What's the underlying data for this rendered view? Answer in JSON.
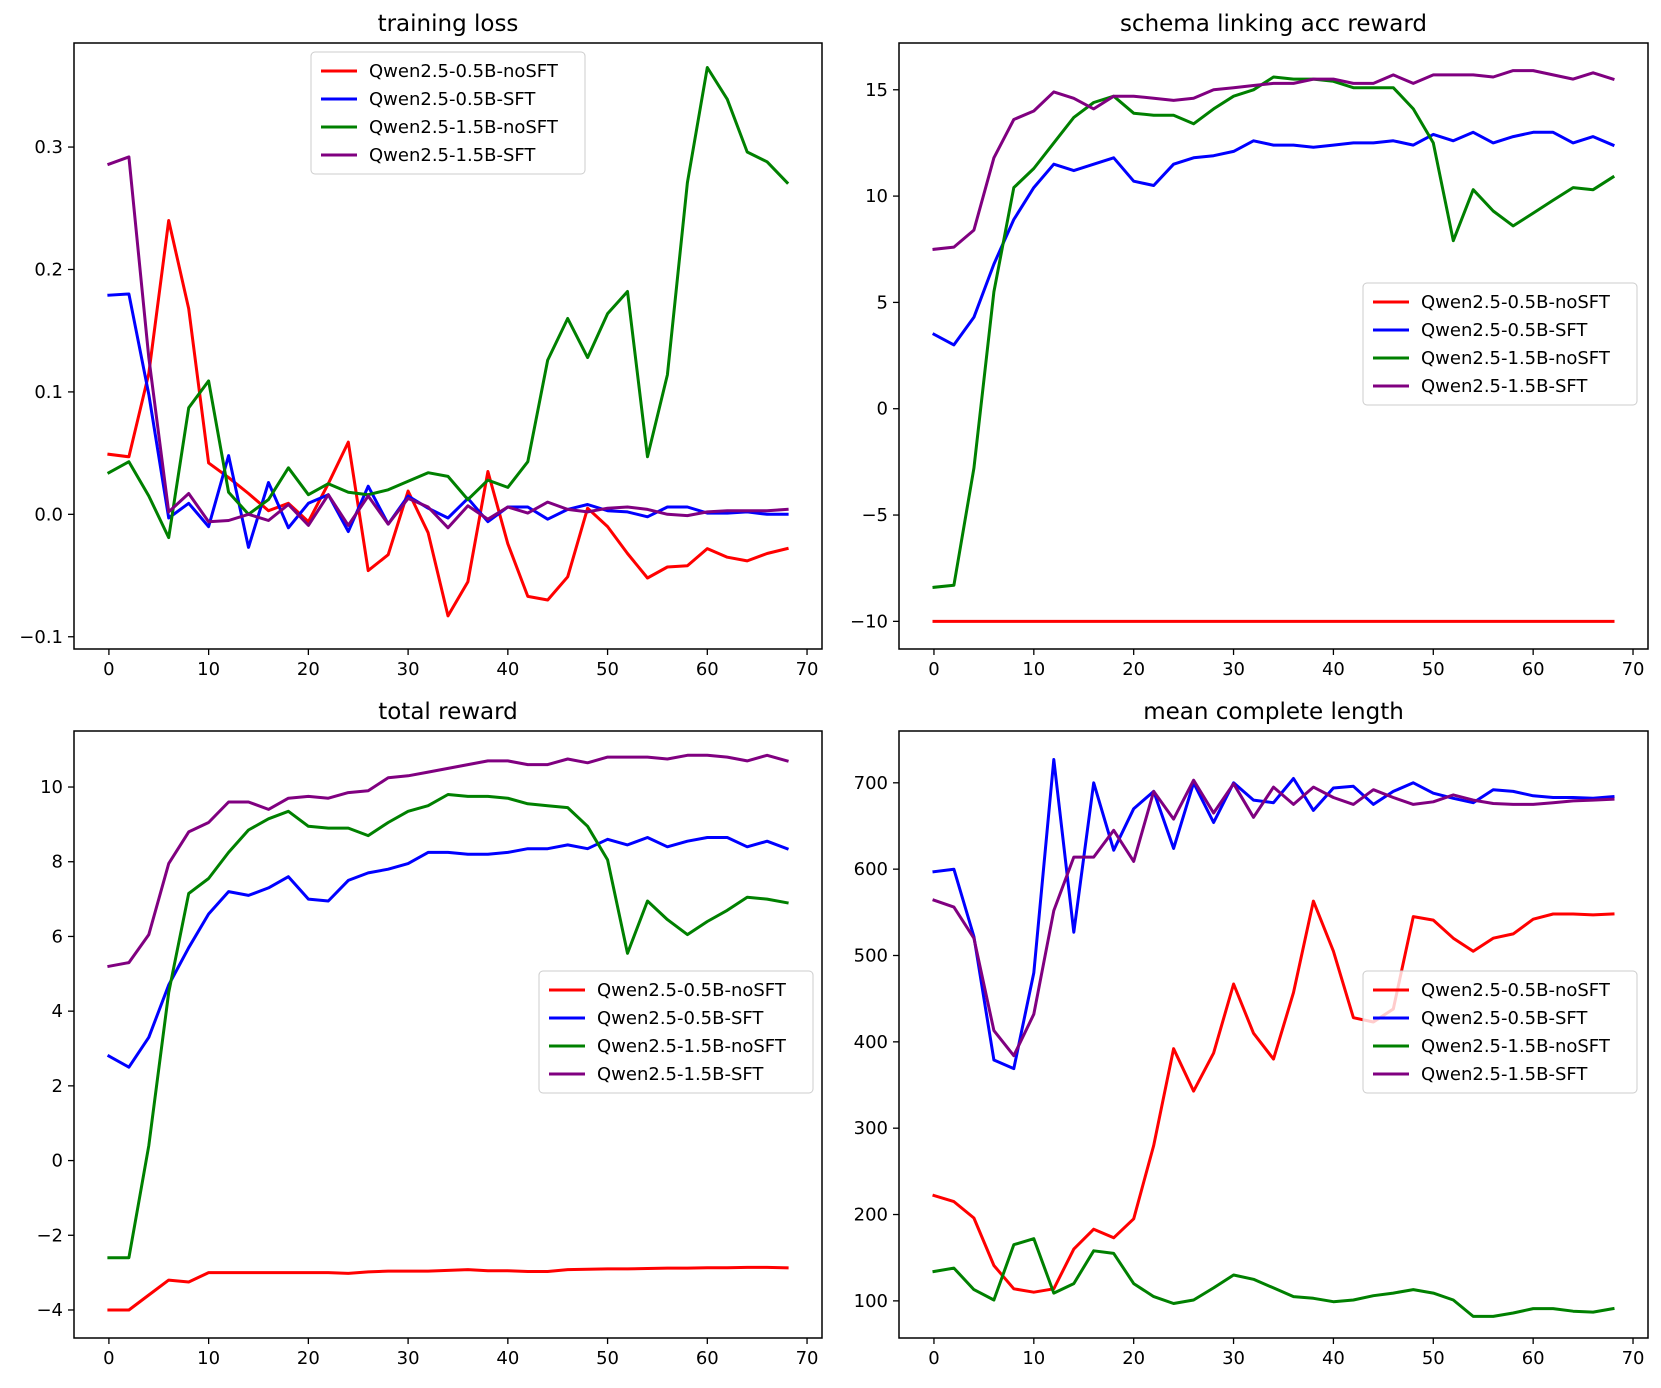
{
  "chart_data": [
    {
      "type": "line",
      "title": "training loss",
      "xlabel": "",
      "ylabel": "",
      "xlim": [
        -3.5,
        71.5
      ],
      "ylim": [
        -0.11,
        0.385
      ],
      "xticks": [
        0,
        10,
        20,
        30,
        40,
        50,
        60,
        70
      ],
      "xtick_labels": [
        "0",
        "10",
        "20",
        "30",
        "40",
        "50",
        "60",
        "70"
      ],
      "yticks": [
        -0.1,
        0.0,
        0.1,
        0.2,
        0.3
      ],
      "ytick_labels": [
        "−0.1",
        "0.0",
        "0.1",
        "0.2",
        "0.3"
      ],
      "grid": false,
      "legend_position": "upper center",
      "x": [
        0,
        2,
        4,
        6,
        8,
        10,
        12,
        14,
        16,
        18,
        20,
        22,
        24,
        26,
        28,
        30,
        32,
        34,
        36,
        38,
        40,
        42,
        44,
        46,
        48,
        50,
        52,
        54,
        56,
        58,
        60,
        62,
        64,
        66,
        68
      ],
      "series": [
        {
          "name": "Qwen2.5-0.5B-noSFT",
          "color": "#ff0000",
          "values": [
            0.049,
            0.047,
            0.115,
            0.24,
            0.168,
            0.042,
            0.03,
            0.017,
            0.003,
            0.009,
            -0.006,
            0.025,
            0.059,
            -0.046,
            -0.033,
            0.019,
            -0.015,
            -0.083,
            -0.055,
            0.035,
            -0.024,
            -0.067,
            -0.07,
            -0.051,
            0.005,
            -0.01,
            -0.032,
            -0.052,
            -0.043,
            -0.042,
            -0.028,
            -0.035,
            -0.038,
            -0.032,
            -0.028
          ]
        },
        {
          "name": "Qwen2.5-0.5B-SFT",
          "color": "#0000ff",
          "values": [
            0.179,
            0.18,
            0.098,
            -0.003,
            0.009,
            -0.01,
            0.048,
            -0.027,
            0.026,
            -0.011,
            0.009,
            0.016,
            -0.014,
            0.023,
            -0.008,
            0.015,
            0.005,
            -0.003,
            0.013,
            -0.006,
            0.006,
            0.006,
            -0.004,
            0.004,
            0.008,
            0.003,
            0.002,
            -0.002,
            0.006,
            0.006,
            0.001,
            0.001,
            0.002,
            0.0,
            0.0
          ]
        },
        {
          "name": "Qwen2.5-1.5B-noSFT",
          "color": "#008000",
          "values": [
            0.034,
            0.043,
            0.015,
            -0.019,
            0.087,
            0.109,
            0.018,
            0.0,
            0.012,
            0.038,
            0.016,
            0.025,
            0.018,
            0.016,
            0.02,
            0.027,
            0.034,
            0.031,
            0.012,
            0.028,
            0.022,
            0.043,
            0.126,
            0.16,
            0.128,
            0.164,
            0.182,
            0.047,
            0.114,
            0.271,
            0.365,
            0.339,
            0.296,
            0.288,
            0.271
          ]
        },
        {
          "name": "Qwen2.5-1.5B-SFT",
          "color": "#800080",
          "values": [
            0.286,
            0.292,
            0.128,
            0.002,
            0.017,
            -0.006,
            -0.005,
            0.0,
            -0.005,
            0.008,
            -0.009,
            0.016,
            -0.009,
            0.015,
            -0.008,
            0.013,
            0.006,
            -0.011,
            0.007,
            -0.004,
            0.006,
            0.001,
            0.01,
            0.004,
            0.002,
            0.005,
            0.006,
            0.004,
            0.0,
            -0.001,
            0.002,
            0.003,
            0.003,
            0.003,
            0.004
          ]
        }
      ]
    },
    {
      "type": "line",
      "title": "schema linking acc reward",
      "xlabel": "",
      "ylabel": "",
      "xlim": [
        -3.5,
        71.5
      ],
      "ylim": [
        -11.3,
        17.2
      ],
      "xticks": [
        0,
        10,
        20,
        30,
        40,
        50,
        60,
        70
      ],
      "xtick_labels": [
        "0",
        "10",
        "20",
        "30",
        "40",
        "50",
        "60",
        "70"
      ],
      "yticks": [
        -10,
        -5,
        0,
        5,
        10,
        15
      ],
      "ytick_labels": [
        "−10",
        "−5",
        "0",
        "5",
        "10",
        "15"
      ],
      "grid": false,
      "legend_position": "center right",
      "x": [
        0,
        2,
        4,
        6,
        8,
        10,
        12,
        14,
        16,
        18,
        20,
        22,
        24,
        26,
        28,
        30,
        32,
        34,
        36,
        38,
        40,
        42,
        44,
        46,
        48,
        50,
        52,
        54,
        56,
        58,
        60,
        62,
        64,
        66,
        68
      ],
      "series": [
        {
          "name": "Qwen2.5-0.5B-noSFT",
          "color": "#ff0000",
          "values": [
            -10,
            -10,
            -10,
            -10,
            -10,
            -10,
            -10,
            -10,
            -10,
            -10,
            -10,
            -10,
            -10,
            -10,
            -10,
            -10,
            -10,
            -10,
            -10,
            -10,
            -10,
            -10,
            -10,
            -10,
            -10,
            -10,
            -10,
            -10,
            -10,
            -10,
            -10,
            -10,
            -10,
            -10,
            -10
          ]
        },
        {
          "name": "Qwen2.5-0.5B-SFT",
          "color": "#0000ff",
          "values": [
            3.5,
            3.0,
            4.3,
            6.8,
            8.9,
            10.4,
            11.5,
            11.2,
            11.5,
            11.8,
            10.7,
            10.5,
            11.5,
            11.8,
            11.9,
            12.1,
            12.6,
            12.4,
            12.4,
            12.3,
            12.4,
            12.5,
            12.5,
            12.6,
            12.4,
            12.9,
            12.6,
            13.0,
            12.5,
            12.8,
            13.0,
            13.0,
            12.5,
            12.8,
            12.4
          ]
        },
        {
          "name": "Qwen2.5-1.5B-noSFT",
          "color": "#008000",
          "values": [
            -8.4,
            -8.3,
            -2.8,
            5.5,
            10.4,
            11.3,
            12.5,
            13.7,
            14.4,
            14.7,
            13.9,
            13.8,
            13.8,
            13.4,
            14.1,
            14.7,
            15.0,
            15.6,
            15.5,
            15.5,
            15.4,
            15.1,
            15.1,
            15.1,
            14.1,
            12.5,
            7.9,
            10.3,
            9.3,
            8.6,
            9.2,
            9.8,
            10.4,
            10.3,
            10.9
          ]
        },
        {
          "name": "Qwen2.5-1.5B-SFT",
          "color": "#800080",
          "values": [
            7.5,
            7.6,
            8.4,
            11.8,
            13.6,
            14.0,
            14.9,
            14.6,
            14.1,
            14.7,
            14.7,
            14.6,
            14.5,
            14.6,
            15.0,
            15.1,
            15.2,
            15.3,
            15.3,
            15.5,
            15.5,
            15.3,
            15.3,
            15.7,
            15.3,
            15.7,
            15.7,
            15.7,
            15.6,
            15.9,
            15.9,
            15.7,
            15.5,
            15.8,
            15.5
          ]
        }
      ]
    },
    {
      "type": "line",
      "title": "total reward",
      "xlabel": "",
      "ylabel": "",
      "xlim": [
        -3.5,
        71.5
      ],
      "ylim": [
        -4.75,
        11.5
      ],
      "xticks": [
        0,
        10,
        20,
        30,
        40,
        50,
        60,
        70
      ],
      "xtick_labels": [
        "0",
        "10",
        "20",
        "30",
        "40",
        "50",
        "60",
        "70"
      ],
      "yticks": [
        -4,
        -2,
        0,
        2,
        4,
        6,
        8,
        10
      ],
      "ytick_labels": [
        "−4",
        "−2",
        "0",
        "2",
        "4",
        "6",
        "8",
        "10"
      ],
      "grid": false,
      "legend_position": "center right",
      "x": [
        0,
        2,
        4,
        6,
        8,
        10,
        12,
        14,
        16,
        18,
        20,
        22,
        24,
        26,
        28,
        30,
        32,
        34,
        36,
        38,
        40,
        42,
        44,
        46,
        48,
        50,
        52,
        54,
        56,
        58,
        60,
        62,
        64,
        66,
        68
      ],
      "series": [
        {
          "name": "Qwen2.5-0.5B-noSFT",
          "color": "#ff0000",
          "values": [
            -4.0,
            -4.0,
            -3.6,
            -3.2,
            -3.25,
            -3.0,
            -3.0,
            -3.0,
            -3.0,
            -3.0,
            -3.0,
            -3.0,
            -3.02,
            -2.98,
            -2.96,
            -2.96,
            -2.96,
            -2.94,
            -2.92,
            -2.95,
            -2.95,
            -2.97,
            -2.97,
            -2.92,
            -2.91,
            -2.9,
            -2.9,
            -2.89,
            -2.88,
            -2.88,
            -2.87,
            -2.87,
            -2.86,
            -2.86,
            -2.87
          ]
        },
        {
          "name": "Qwen2.5-0.5B-SFT",
          "color": "#0000ff",
          "values": [
            2.8,
            2.5,
            3.3,
            4.7,
            5.7,
            6.6,
            7.2,
            7.1,
            7.3,
            7.6,
            7.0,
            6.95,
            7.5,
            7.7,
            7.8,
            7.95,
            8.25,
            8.25,
            8.2,
            8.2,
            8.25,
            8.35,
            8.35,
            8.45,
            8.35,
            8.6,
            8.45,
            8.65,
            8.4,
            8.55,
            8.65,
            8.65,
            8.4,
            8.55,
            8.35
          ]
        },
        {
          "name": "Qwen2.5-1.5B-noSFT",
          "color": "#008000",
          "values": [
            -2.6,
            -2.6,
            0.4,
            4.5,
            7.15,
            7.55,
            8.25,
            8.85,
            9.15,
            9.35,
            8.95,
            8.9,
            8.9,
            8.7,
            9.05,
            9.35,
            9.5,
            9.8,
            9.75,
            9.75,
            9.7,
            9.55,
            9.5,
            9.45,
            8.95,
            8.05,
            5.55,
            6.95,
            6.45,
            6.05,
            6.4,
            6.7,
            7.05,
            7.0,
            6.9
          ]
        },
        {
          "name": "Qwen2.5-1.5B-SFT",
          "color": "#800080",
          "values": [
            5.2,
            5.3,
            6.05,
            7.95,
            8.8,
            9.05,
            9.6,
            9.6,
            9.4,
            9.7,
            9.75,
            9.7,
            9.85,
            9.9,
            10.25,
            10.3,
            10.4,
            10.5,
            10.6,
            10.7,
            10.7,
            10.6,
            10.6,
            10.75,
            10.65,
            10.8,
            10.8,
            10.8,
            10.75,
            10.85,
            10.85,
            10.8,
            10.7,
            10.85,
            10.7
          ]
        }
      ]
    },
    {
      "type": "line",
      "title": "mean complete length",
      "xlabel": "",
      "ylabel": "",
      "xlim": [
        -3.5,
        71.5
      ],
      "ylim": [
        57,
        760
      ],
      "xticks": [
        0,
        10,
        20,
        30,
        40,
        50,
        60,
        70
      ],
      "xtick_labels": [
        "0",
        "10",
        "20",
        "30",
        "40",
        "50",
        "60",
        "70"
      ],
      "yticks": [
        100,
        200,
        300,
        400,
        500,
        600,
        700
      ],
      "ytick_labels": [
        "100",
        "200",
        "300",
        "400",
        "500",
        "600",
        "700"
      ],
      "grid": false,
      "legend_position": "center right",
      "x": [
        0,
        2,
        4,
        6,
        8,
        10,
        12,
        14,
        16,
        18,
        20,
        22,
        24,
        26,
        28,
        30,
        32,
        34,
        36,
        38,
        40,
        42,
        44,
        46,
        48,
        50,
        52,
        54,
        56,
        58,
        60,
        62,
        64,
        66,
        68
      ],
      "series": [
        {
          "name": "Qwen2.5-0.5B-noSFT",
          "color": "#ff0000",
          "values": [
            222,
            215,
            196,
            141,
            114,
            110,
            114,
            160,
            183,
            173,
            195,
            280,
            392,
            343,
            387,
            467,
            410,
            380,
            457,
            563,
            505,
            428,
            423,
            438,
            545,
            541,
            520,
            505,
            520,
            525,
            542,
            548,
            548,
            547,
            548
          ]
        },
        {
          "name": "Qwen2.5-0.5B-SFT",
          "color": "#0000ff",
          "values": [
            597,
            600,
            522,
            379,
            369,
            480,
            727,
            527,
            700,
            622,
            670,
            690,
            624,
            700,
            654,
            700,
            680,
            677,
            705,
            668,
            694,
            696,
            675,
            690,
            700,
            688,
            682,
            677,
            692,
            690,
            685,
            683,
            683,
            682,
            684
          ]
        },
        {
          "name": "Qwen2.5-1.5B-noSFT",
          "color": "#008000",
          "values": [
            134,
            138,
            113,
            101,
            165,
            172,
            109,
            120,
            158,
            155,
            120,
            105,
            97,
            101,
            115,
            130,
            125,
            115,
            105,
            103,
            99,
            101,
            106,
            109,
            113,
            109,
            101,
            82,
            82,
            86,
            91,
            91,
            88,
            87,
            91
          ]
        },
        {
          "name": "Qwen2.5-1.5B-SFT",
          "color": "#800080",
          "values": [
            564,
            556,
            520,
            413,
            384,
            432,
            552,
            614,
            614,
            645,
            609,
            690,
            658,
            703,
            665,
            699,
            660,
            695,
            675,
            695,
            683,
            675,
            692,
            683,
            675,
            678,
            686,
            680,
            676,
            675,
            675,
            677,
            679,
            680,
            681
          ]
        }
      ]
    }
  ]
}
